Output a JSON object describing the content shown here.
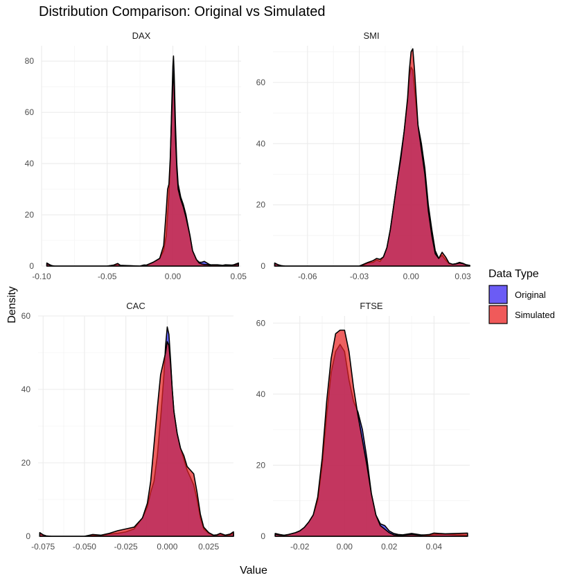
{
  "chart_data": {
    "type": "area",
    "title": "Distribution Comparison: Original vs Simulated",
    "xlabel": "Value",
    "ylabel": "Density",
    "legend": {
      "title": "Data Type",
      "position": "right",
      "entries": [
        {
          "label": "Original",
          "color": "#6b5cf5"
        },
        {
          "label": "Simulated",
          "color": "#f05a5a"
        }
      ]
    },
    "grid": true,
    "panels": [
      {
        "name": "DAX",
        "xlim": [
          -0.1,
          0.052
        ],
        "ylim": [
          0,
          86
        ],
        "xticks": [
          -0.1,
          -0.05,
          0.0,
          0.05
        ],
        "xtick_labels": [
          "-0.10",
          "-0.05",
          "0.00",
          "0.05"
        ],
        "yticks": [
          0,
          20,
          40,
          60,
          80
        ],
        "series": [
          {
            "name": "Original",
            "x": [
              -0.096,
              -0.094,
              -0.092,
              -0.09,
              -0.05,
              -0.045,
              -0.042,
              -0.04,
              -0.025,
              -0.022,
              -0.02,
              -0.015,
              -0.01,
              -0.007,
              -0.005,
              -0.004,
              -0.003,
              -0.002,
              -0.001,
              0.0,
              0.0005,
              0.001,
              0.002,
              0.003,
              0.004,
              0.006,
              0.008,
              0.01,
              0.013,
              0.015,
              0.018,
              0.02,
              0.022,
              0.024,
              0.026,
              0.028,
              0.03,
              0.034,
              0.038,
              0.04,
              0.045,
              0.048,
              0.05
            ],
            "y": [
              1.2,
              0.6,
              0.1,
              0,
              0,
              0.3,
              0.8,
              0.2,
              0,
              0.4,
              0.3,
              1.5,
              3,
              6,
              12,
              20,
              28,
              40,
              60,
              78,
              82,
              75,
              55,
              40,
              32,
              27,
              24,
              20,
              12,
              6,
              2.5,
              1.5,
              1.5,
              1.8,
              1.2,
              0.6,
              0.4,
              0.2,
              0.1,
              0.3,
              0.2,
              0.8,
              1.2
            ]
          },
          {
            "name": "Simulated",
            "x": [
              -0.096,
              -0.094,
              -0.092,
              -0.09,
              -0.05,
              -0.045,
              -0.042,
              -0.04,
              -0.025,
              -0.022,
              -0.02,
              -0.015,
              -0.01,
              -0.007,
              -0.005,
              -0.004,
              -0.003,
              -0.002,
              -0.001,
              0.0,
              0.0005,
              0.001,
              0.002,
              0.003,
              0.004,
              0.006,
              0.008,
              0.01,
              0.013,
              0.015,
              0.018,
              0.02,
              0.022,
              0.024,
              0.026,
              0.028,
              0.03,
              0.034,
              0.038,
              0.04,
              0.045,
              0.048,
              0.05
            ],
            "y": [
              1.0,
              0.5,
              0.1,
              0,
              0,
              0.4,
              1.0,
              0.3,
              0,
              0.4,
              0.4,
              1.5,
              3,
              8,
              22,
              30,
              32,
              42,
              58,
              72,
              76,
              70,
              50,
              38,
              30,
              26,
              23,
              19,
              12,
              6,
              2.5,
              1.2,
              0.8,
              0.6,
              0.6,
              0.4,
              0.5,
              0.5,
              0.3,
              0.5,
              0.4,
              0.6,
              0.8
            ]
          }
        ]
      },
      {
        "name": "SMI",
        "xlim": [
          -0.08,
          0.034
        ],
        "ylim": [
          0,
          72
        ],
        "xticks": [
          -0.06,
          -0.03,
          0.0,
          0.03
        ],
        "xtick_labels": [
          "-0.06",
          "-0.03",
          "0.00",
          "0.03"
        ],
        "yticks": [
          0,
          20,
          40,
          60
        ],
        "series": [
          {
            "name": "Original",
            "x": [
              -0.079,
              -0.077,
              -0.075,
              -0.073,
              -0.03,
              -0.027,
              -0.025,
              -0.022,
              -0.02,
              -0.018,
              -0.016,
              -0.014,
              -0.012,
              -0.01,
              -0.008,
              -0.006,
              -0.004,
              -0.002,
              -0.001,
              0.0,
              0.001,
              0.002,
              0.003,
              0.004,
              0.006,
              0.008,
              0.01,
              0.012,
              0.014,
              0.016,
              0.018,
              0.02,
              0.022,
              0.024,
              0.026,
              0.028,
              0.03,
              0.032,
              0.034
            ],
            "y": [
              1.0,
              0.4,
              0.1,
              0,
              0,
              0.5,
              1.0,
              1.2,
              2.0,
              1.5,
              3,
              6,
              12,
              20,
              28,
              36,
              44,
              54,
              62,
              65,
              64,
              58,
              52,
              46,
              40,
              32,
              20,
              12,
              5,
              2.5,
              3.5,
              2.0,
              0.8,
              0.6,
              0.8,
              1.2,
              0.9,
              0.4,
              0.2
            ]
          },
          {
            "name": "Simulated",
            "x": [
              -0.079,
              -0.077,
              -0.075,
              -0.073,
              -0.03,
              -0.027,
              -0.025,
              -0.022,
              -0.02,
              -0.018,
              -0.016,
              -0.014,
              -0.012,
              -0.01,
              -0.008,
              -0.006,
              -0.004,
              -0.002,
              -0.001,
              0.0,
              0.001,
              0.002,
              0.003,
              0.004,
              0.006,
              0.008,
              0.01,
              0.012,
              0.014,
              0.016,
              0.018,
              0.02,
              0.022,
              0.024,
              0.026,
              0.028,
              0.03,
              0.032,
              0.034
            ],
            "y": [
              0.9,
              0.4,
              0.1,
              0,
              0,
              0.7,
              1.2,
              1.8,
              2.5,
              2.2,
              3,
              6,
              12,
              20,
              28,
              35,
              44,
              55,
              64,
              70,
              71,
              64,
              55,
              46,
              38,
              30,
              18,
              10,
              4,
              2.5,
              4.5,
              3.0,
              1.0,
              0.6,
              0.7,
              1.0,
              0.8,
              0.4,
              0.2
            ]
          }
        ]
      },
      {
        "name": "CAC",
        "xlim": [
          -0.078,
          0.04
        ],
        "ylim": [
          0,
          60
        ],
        "xticks": [
          -0.075,
          -0.05,
          -0.025,
          0.0,
          0.025
        ],
        "xtick_labels": [
          "-0.075",
          "-0.050",
          "-0.025",
          "0.000",
          "0.025"
        ],
        "yticks": [
          0,
          20,
          40,
          60
        ],
        "series": [
          {
            "name": "Original",
            "x": [
              -0.077,
              -0.075,
              -0.073,
              -0.07,
              -0.05,
              -0.045,
              -0.04,
              -0.035,
              -0.03,
              -0.025,
              -0.02,
              -0.015,
              -0.012,
              -0.01,
              -0.008,
              -0.006,
              -0.004,
              -0.002,
              -0.001,
              0.0,
              0.001,
              0.002,
              0.003,
              0.004,
              0.006,
              0.008,
              0.01,
              0.012,
              0.014,
              0.016,
              0.018,
              0.02,
              0.022,
              0.025,
              0.028,
              0.03,
              0.032,
              0.035,
              0.038,
              0.04
            ],
            "y": [
              0.8,
              0.3,
              0.1,
              0,
              0,
              0.3,
              0.2,
              0.6,
              0.8,
              1.2,
              2.0,
              5,
              8,
              12,
              15,
              22,
              32,
              44,
              52,
              57,
              55,
              48,
              40,
              34,
              28,
              24,
              21,
              18,
              16,
              14,
              10,
              5,
              2.0,
              0.8,
              0.2,
              0.3,
              0.6,
              0.2,
              0.4,
              0.8
            ]
          },
          {
            "name": "Simulated",
            "x": [
              -0.077,
              -0.075,
              -0.073,
              -0.07,
              -0.05,
              -0.045,
              -0.04,
              -0.035,
              -0.03,
              -0.025,
              -0.02,
              -0.015,
              -0.012,
              -0.01,
              -0.008,
              -0.006,
              -0.004,
              -0.002,
              -0.001,
              0.0,
              0.001,
              0.002,
              0.003,
              0.004,
              0.006,
              0.008,
              0.01,
              0.012,
              0.014,
              0.016,
              0.018,
              0.02,
              0.022,
              0.025,
              0.028,
              0.03,
              0.032,
              0.035,
              0.038,
              0.04
            ],
            "y": [
              1.0,
              0.4,
              0.1,
              0,
              0,
              0.5,
              0.3,
              0.8,
              1.5,
              2.0,
              2.5,
              5,
              9,
              15,
              25,
              35,
              44,
              48,
              50,
              53,
              52,
              47,
              40,
              34,
              28,
              24,
              22,
              19,
              18,
              17,
              12,
              6,
              2.5,
              1.0,
              0.3,
              0.4,
              0.8,
              0.3,
              0.6,
              1.2
            ]
          }
        ]
      },
      {
        "name": "FTSE",
        "xlim": [
          -0.032,
          0.056
        ],
        "ylim": [
          0,
          62
        ],
        "xticks": [
          -0.02,
          0.0,
          0.02,
          0.04
        ],
        "xtick_labels": [
          "-0.02",
          "0.00",
          "0.02",
          "0.04"
        ],
        "yticks": [
          0,
          20,
          40,
          60
        ],
        "series": [
          {
            "name": "Original",
            "x": [
              -0.031,
              -0.029,
              -0.027,
              -0.025,
              -0.022,
              -0.02,
              -0.018,
              -0.016,
              -0.014,
              -0.012,
              -0.01,
              -0.008,
              -0.006,
              -0.004,
              -0.002,
              0.0,
              0.002,
              0.004,
              0.006,
              0.008,
              0.01,
              0.012,
              0.014,
              0.016,
              0.018,
              0.02,
              0.022,
              0.024,
              0.026,
              0.03,
              0.034,
              0.038,
              0.04,
              0.045,
              0.05,
              0.055
            ],
            "y": [
              0.8,
              0.5,
              0.3,
              0.5,
              1.0,
              1.5,
              2.5,
              4,
              6,
              10,
              20,
              34,
              46,
              52,
              54,
              52,
              44,
              38,
              35,
              30,
              22,
              12,
              6,
              3.5,
              3,
              1.5,
              0.8,
              0.5,
              0.4,
              0.8,
              0.4,
              0.3,
              0.5,
              0.6,
              0.4,
              0.3
            ]
          },
          {
            "name": "Simulated",
            "x": [
              -0.031,
              -0.029,
              -0.027,
              -0.025,
              -0.022,
              -0.02,
              -0.018,
              -0.016,
              -0.014,
              -0.012,
              -0.01,
              -0.008,
              -0.006,
              -0.004,
              -0.002,
              0.0,
              0.002,
              0.004,
              0.006,
              0.008,
              0.01,
              0.012,
              0.014,
              0.016,
              0.018,
              0.02,
              0.022,
              0.024,
              0.026,
              0.03,
              0.034,
              0.038,
              0.04,
              0.045,
              0.05,
              0.055
            ],
            "y": [
              0.6,
              0.4,
              0.3,
              0.5,
              1.0,
              1.5,
              2.5,
              4,
              6,
              11,
              22,
              38,
              50,
              57,
              58,
              58,
              52,
              42,
              34,
              27,
              20,
              12,
              6,
              3,
              2.0,
              1.0,
              0.4,
              0.3,
              0.3,
              0.5,
              0.3,
              0.5,
              0.9,
              0.7,
              0.8,
              0.9
            ]
          }
        ]
      }
    ]
  }
}
